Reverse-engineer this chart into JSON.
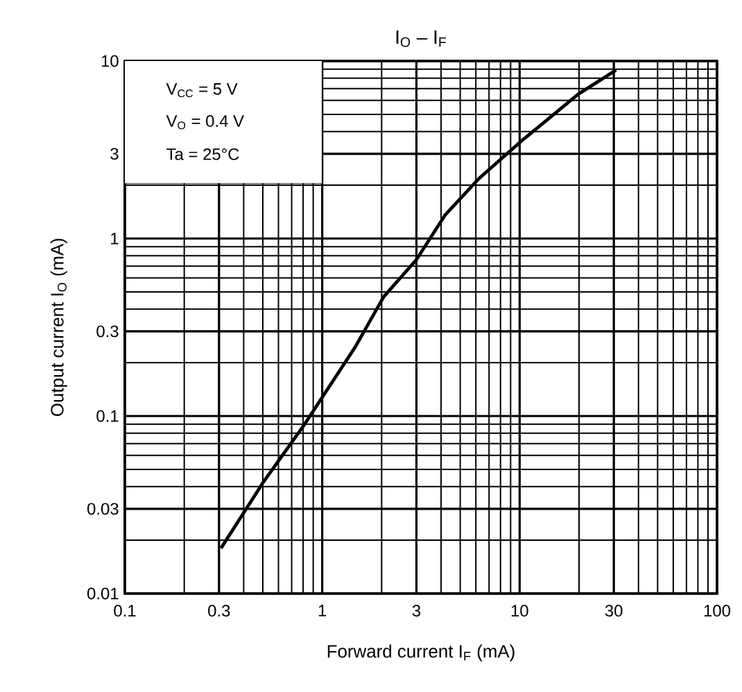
{
  "chart_data": {
    "type": "line",
    "title": "I$_{O}$ – I$_{F}$",
    "xlabel": "Forward current   I$_{F}$   (mA)",
    "ylabel": "Output current   I$_{O}$   (mA)",
    "annotations": [
      "V$_{CC}$ = 5 V",
      "V$_{O}$ = 0.4 V",
      "Ta = 25°C"
    ],
    "x": [
      0.307,
      0.5,
      0.796,
      1.47,
      2.05,
      3.0,
      4.2,
      6.2,
      10.2,
      19.8,
      30.8
    ],
    "series": [
      {
        "color": "#000000",
        "values": [
          0.018,
          0.042,
          0.0866,
          0.245,
          0.47,
          0.76,
          1.36,
          2.17,
          3.54,
          6.5,
          8.9
        ]
      }
    ],
    "log": "xy",
    "xlim": [
      0.1,
      100
    ],
    "ylim": [
      0.01,
      10
    ],
    "xticks": [
      0.1,
      0.3,
      1,
      3,
      10,
      30,
      100
    ],
    "yticks": [
      0.01,
      0.03,
      0.1,
      0.3,
      1,
      3,
      10
    ],
    "grid": true,
    "line_style": "solid",
    "marker": "none"
  }
}
